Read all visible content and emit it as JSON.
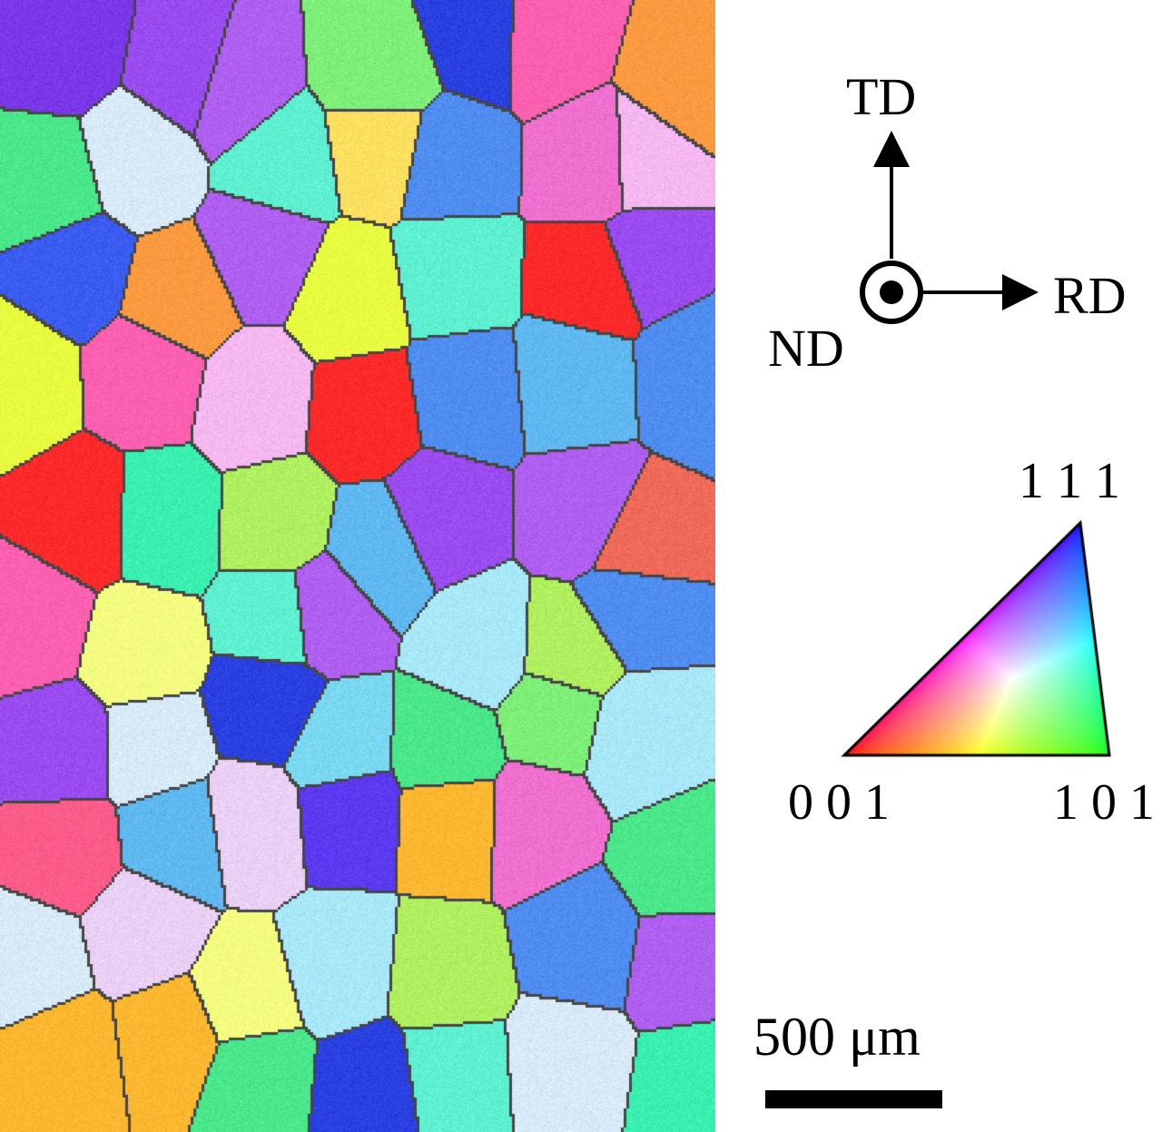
{
  "map": {
    "palette": [
      "#ff2a2a",
      "#ff6a3a",
      "#f06a5a",
      "#ff9a40",
      "#ffb830",
      "#ffe060",
      "#fff07a",
      "#f4ff80",
      "#e8ff40",
      "#b0f060",
      "#7ef07a",
      "#4ae88a",
      "#3af0b0",
      "#5ef0d0",
      "#7ad8f0",
      "#60b8f0",
      "#4f8ef0",
      "#3a5cf0",
      "#2a40e0",
      "#5b3af0",
      "#7a38e8",
      "#9a4cf0",
      "#b060f0",
      "#d080f0",
      "#f070d0",
      "#ff60b0",
      "#ff5c8a",
      "#f6b8f0",
      "#ead0f4",
      "#d8eaf8",
      "#c8f0e0",
      "#a8e8f8"
    ]
  },
  "orientation_axes": {
    "td": "TD",
    "rd": "RD",
    "nd": "ND"
  },
  "ipf_key": {
    "top_label": "1 1 1",
    "left_label": "0 0 1",
    "right_label": "1 0 1"
  },
  "scale_bar": {
    "label": "500 μm"
  }
}
